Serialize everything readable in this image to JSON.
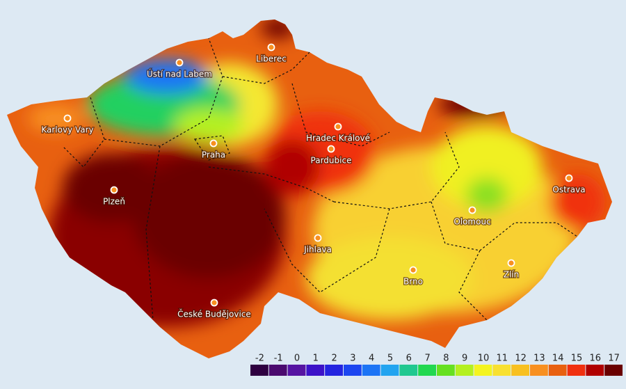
{
  "cities": [
    "Ústí nad Labem",
    "Liberec",
    "Karlovy Vary",
    "Praha",
    "Hradec Králové",
    "Pardubice",
    "Plzeň",
    "Ostrava",
    "Olomouc",
    "Jihlava",
    "Zlín",
    "Brno",
    "České Budějovice"
  ],
  "legend": [
    {
      "value": -2,
      "color": "#2e0040"
    },
    {
      "value": -1,
      "color": "#4a0a6e"
    },
    {
      "value": 0,
      "color": "#5614a2"
    },
    {
      "value": 1,
      "color": "#3c12c8"
    },
    {
      "value": 2,
      "color": "#2424e0"
    },
    {
      "value": 3,
      "color": "#1c46f0"
    },
    {
      "value": 4,
      "color": "#1c74f5"
    },
    {
      "value": 5,
      "color": "#22a4f0"
    },
    {
      "value": 6,
      "color": "#20c890"
    },
    {
      "value": 7,
      "color": "#22d850"
    },
    {
      "value": 8,
      "color": "#66e020"
    },
    {
      "value": 9,
      "color": "#b4f020"
    },
    {
      "value": 10,
      "color": "#f4f420"
    },
    {
      "value": 11,
      "color": "#f8e030"
    },
    {
      "value": 12,
      "color": "#f8c020"
    },
    {
      "value": 13,
      "color": "#f89020"
    },
    {
      "value": 14,
      "color": "#e86010"
    },
    {
      "value": 15,
      "color": "#f03010"
    },
    {
      "value": 16,
      "color": "#b00000"
    },
    {
      "value": 17,
      "color": "#6a0000"
    }
  ]
}
